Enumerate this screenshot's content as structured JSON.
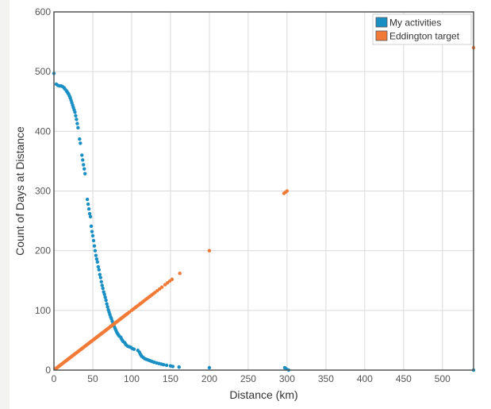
{
  "chart_data": {
    "type": "scatter",
    "xlabel": "Distance (km)",
    "ylabel": "Count of Days at Distance",
    "xlim": [
      0,
      540
    ],
    "ylim": [
      0,
      600
    ],
    "x_ticks": [
      "0",
      "50",
      "100",
      "150",
      "200",
      "250",
      "300",
      "350",
      "400",
      "450",
      "500"
    ],
    "y_ticks": [
      "0",
      "100",
      "200",
      "300",
      "400",
      "500",
      "600"
    ],
    "grid": true,
    "legend_position": "top-right",
    "series": [
      {
        "name": "My activities",
        "color": "#1a8fc4",
        "points": [
          [
            0,
            497
          ],
          [
            3,
            479
          ],
          [
            5,
            477
          ],
          [
            7,
            476
          ],
          [
            9,
            476
          ],
          [
            11,
            475
          ],
          [
            13,
            473
          ],
          [
            14,
            471
          ],
          [
            16,
            468
          ],
          [
            17,
            466
          ],
          [
            18,
            464
          ],
          [
            19,
            462
          ],
          [
            20,
            459
          ],
          [
            21,
            456
          ],
          [
            22,
            452
          ],
          [
            23,
            448
          ],
          [
            24,
            444
          ],
          [
            25,
            440
          ],
          [
            26,
            436
          ],
          [
            27,
            432
          ],
          [
            28,
            426
          ],
          [
            29,
            420
          ],
          [
            30,
            413
          ],
          [
            31,
            406
          ],
          [
            33,
            387
          ],
          [
            34,
            380
          ],
          [
            36,
            360
          ],
          [
            37,
            352
          ],
          [
            38,
            344
          ],
          [
            39,
            337
          ],
          [
            40,
            329
          ],
          [
            43,
            286
          ],
          [
            44,
            278
          ],
          [
            45,
            270
          ],
          [
            46,
            262
          ],
          [
            47,
            257
          ],
          [
            48,
            241
          ],
          [
            49,
            232
          ],
          [
            50,
            225
          ],
          [
            51,
            217
          ],
          [
            52,
            208
          ],
          [
            53,
            200
          ],
          [
            54,
            192
          ],
          [
            55,
            186
          ],
          [
            56,
            181
          ],
          [
            57,
            173
          ],
          [
            58,
            168
          ],
          [
            59,
            160
          ],
          [
            60,
            155
          ],
          [
            61,
            148
          ],
          [
            62,
            142
          ],
          [
            63,
            137
          ],
          [
            64,
            131
          ],
          [
            65,
            127
          ],
          [
            66,
            122
          ],
          [
            67,
            117
          ],
          [
            68,
            111
          ],
          [
            69,
            106
          ],
          [
            70,
            101
          ],
          [
            71,
            97
          ],
          [
            72,
            93
          ],
          [
            73,
            89
          ],
          [
            74,
            86
          ],
          [
            75,
            82
          ],
          [
            76,
            78
          ],
          [
            77,
            75
          ],
          [
            78,
            72
          ],
          [
            79,
            69
          ],
          [
            80,
            66
          ],
          [
            81,
            63
          ],
          [
            82,
            61
          ],
          [
            83,
            59
          ],
          [
            84,
            57
          ],
          [
            86,
            55
          ],
          [
            87,
            52
          ],
          [
            88,
            50
          ],
          [
            89,
            48
          ],
          [
            91,
            46
          ],
          [
            92,
            44
          ],
          [
            93,
            42
          ],
          [
            95,
            40
          ],
          [
            97,
            39
          ],
          [
            99,
            38
          ],
          [
            101,
            36
          ],
          [
            103,
            35
          ],
          [
            108,
            33
          ],
          [
            110,
            30
          ],
          [
            111,
            27
          ],
          [
            112,
            25
          ],
          [
            113,
            23
          ],
          [
            115,
            21
          ],
          [
            117,
            19
          ],
          [
            119,
            18
          ],
          [
            121,
            17
          ],
          [
            123,
            16
          ],
          [
            125,
            15
          ],
          [
            127,
            14
          ],
          [
            129,
            13
          ],
          [
            132,
            12
          ],
          [
            135,
            11
          ],
          [
            138,
            10
          ],
          [
            141,
            9
          ],
          [
            145,
            8
          ],
          [
            150,
            7
          ],
          [
            153,
            6
          ],
          [
            161,
            5
          ],
          [
            200,
            4
          ],
          [
            297,
            4
          ],
          [
            299,
            2
          ],
          [
            302,
            0
          ],
          [
            540,
            0
          ]
        ]
      },
      {
        "name": "Eddington target",
        "color": "#f07a36",
        "points": [
          [
            2,
            2
          ],
          [
            3,
            3
          ],
          [
            4,
            4
          ],
          [
            5,
            5
          ],
          [
            6,
            6
          ],
          [
            7,
            7
          ],
          [
            8,
            8
          ],
          [
            9,
            9
          ],
          [
            10,
            10
          ],
          [
            11,
            11
          ],
          [
            12,
            12
          ],
          [
            13,
            13
          ],
          [
            14,
            14
          ],
          [
            15,
            15
          ],
          [
            16,
            16
          ],
          [
            17,
            17
          ],
          [
            18,
            18
          ],
          [
            19,
            19
          ],
          [
            20,
            20
          ],
          [
            21,
            21
          ],
          [
            22,
            22
          ],
          [
            23,
            23
          ],
          [
            24,
            24
          ],
          [
            25,
            25
          ],
          [
            26,
            26
          ],
          [
            27,
            27
          ],
          [
            28,
            28
          ],
          [
            29,
            29
          ],
          [
            30,
            30
          ],
          [
            31,
            31
          ],
          [
            32,
            32
          ],
          [
            33,
            33
          ],
          [
            34,
            34
          ],
          [
            35,
            35
          ],
          [
            36,
            36
          ],
          [
            37,
            37
          ],
          [
            38,
            38
          ],
          [
            39,
            39
          ],
          [
            40,
            40
          ],
          [
            41,
            41
          ],
          [
            42,
            42
          ],
          [
            43,
            43
          ],
          [
            44,
            44
          ],
          [
            45,
            45
          ],
          [
            46,
            46
          ],
          [
            47,
            47
          ],
          [
            48,
            48
          ],
          [
            49,
            49
          ],
          [
            50,
            50
          ],
          [
            51,
            51
          ],
          [
            52,
            52
          ],
          [
            53,
            53
          ],
          [
            54,
            54
          ],
          [
            55,
            55
          ],
          [
            56,
            56
          ],
          [
            57,
            57
          ],
          [
            58,
            58
          ],
          [
            59,
            59
          ],
          [
            60,
            60
          ],
          [
            61,
            61
          ],
          [
            62,
            62
          ],
          [
            63,
            63
          ],
          [
            64,
            64
          ],
          [
            65,
            65
          ],
          [
            66,
            66
          ],
          [
            67,
            67
          ],
          [
            68,
            68
          ],
          [
            69,
            69
          ],
          [
            70,
            70
          ],
          [
            71,
            71
          ],
          [
            72,
            72
          ],
          [
            73,
            73
          ],
          [
            74,
            74
          ],
          [
            75,
            75
          ],
          [
            76,
            76
          ],
          [
            77,
            77
          ],
          [
            78,
            78
          ],
          [
            79,
            79
          ],
          [
            80,
            80
          ],
          [
            81,
            81
          ],
          [
            82,
            82
          ],
          [
            83,
            83
          ],
          [
            84,
            84
          ],
          [
            85,
            85
          ],
          [
            86,
            86
          ],
          [
            87,
            87
          ],
          [
            88,
            88
          ],
          [
            89,
            89
          ],
          [
            90,
            90
          ],
          [
            91,
            91
          ],
          [
            92,
            92
          ],
          [
            93,
            93
          ],
          [
            94,
            94
          ],
          [
            95,
            95
          ],
          [
            97,
            97
          ],
          [
            100,
            100
          ],
          [
            102,
            102
          ],
          [
            104,
            104
          ],
          [
            105,
            105
          ],
          [
            106,
            106
          ],
          [
            108,
            108
          ],
          [
            110,
            110
          ],
          [
            111,
            111
          ],
          [
            112,
            112
          ],
          [
            114,
            114
          ],
          [
            116,
            116
          ],
          [
            118,
            118
          ],
          [
            120,
            120
          ],
          [
            122,
            122
          ],
          [
            124,
            124
          ],
          [
            126,
            126
          ],
          [
            128,
            128
          ],
          [
            130,
            130
          ],
          [
            133,
            133
          ],
          [
            136,
            136
          ],
          [
            139,
            139
          ],
          [
            143,
            143
          ],
          [
            146,
            146
          ],
          [
            149,
            149
          ],
          [
            152,
            152
          ],
          [
            162,
            162
          ],
          [
            200,
            200
          ],
          [
            296,
            296
          ],
          [
            298,
            298
          ],
          [
            300,
            300
          ],
          [
            540,
            540
          ]
        ]
      }
    ]
  }
}
